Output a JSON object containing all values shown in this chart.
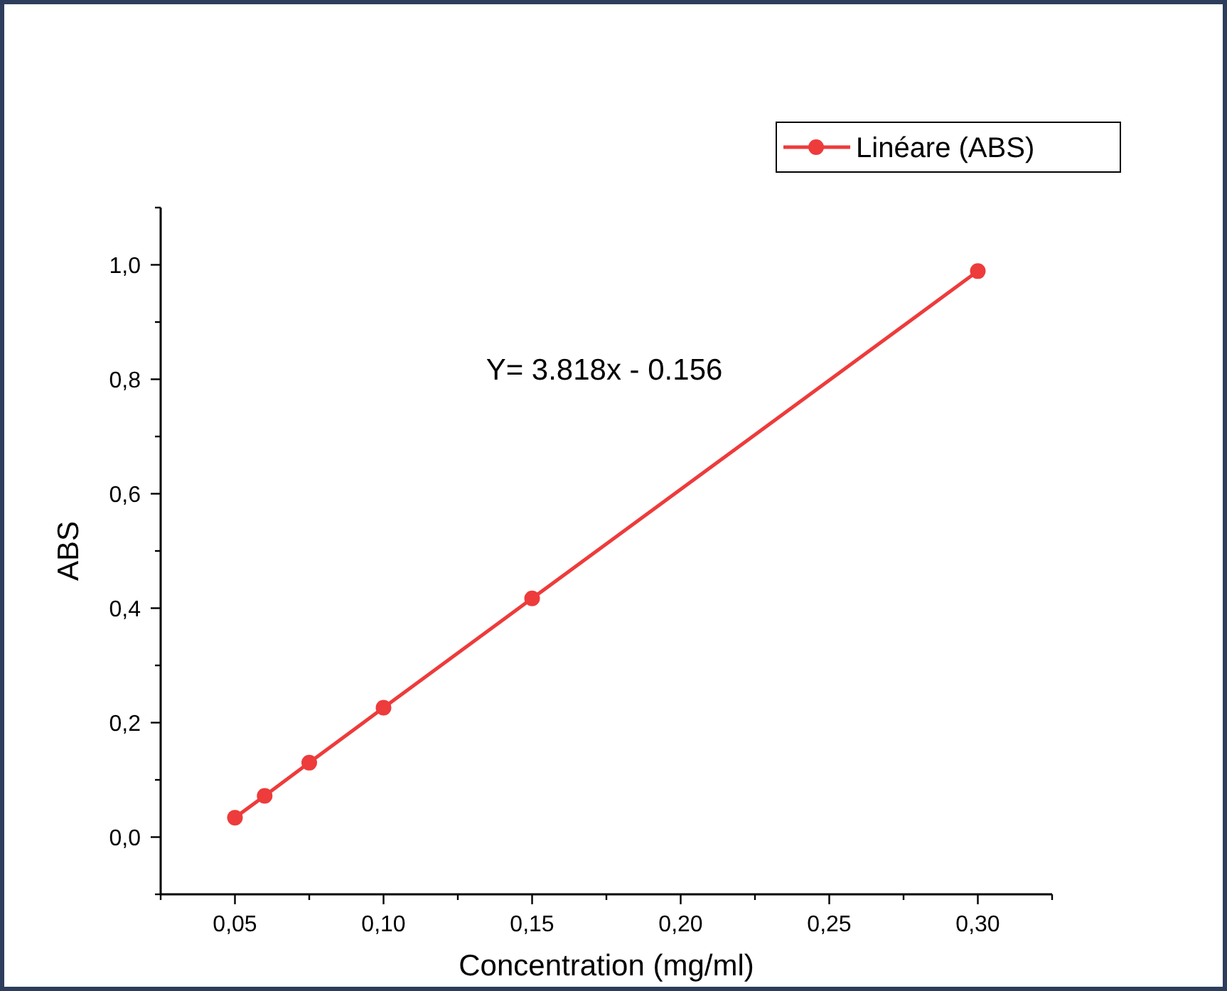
{
  "chart_data": {
    "type": "line",
    "xlabel": "Concentration (mg/ml)",
    "ylabel": "ABS",
    "x": [
      0.05,
      0.06,
      0.075,
      0.1,
      0.15,
      0.3
    ],
    "series": [
      {
        "name": "Linéare (ABS)",
        "color": "#ee3b3b",
        "values": [
          0.034,
          0.072,
          0.13,
          0.226,
          0.417,
          0.989
        ]
      }
    ],
    "xlim": [
      0.025,
      0.325
    ],
    "xticks": [
      {
        "value": 0.025,
        "label": null
      },
      {
        "value": 0.05,
        "label": "0,05"
      },
      {
        "value": 0.075,
        "label": null
      },
      {
        "value": 0.1,
        "label": "0,10"
      },
      {
        "value": 0.125,
        "label": null
      },
      {
        "value": 0.15,
        "label": "0,15"
      },
      {
        "value": 0.175,
        "label": null
      },
      {
        "value": 0.2,
        "label": "0,20"
      },
      {
        "value": 0.225,
        "label": null
      },
      {
        "value": 0.25,
        "label": "0,25"
      },
      {
        "value": 0.275,
        "label": null
      },
      {
        "value": 0.3,
        "label": "0,30"
      },
      {
        "value": 0.325,
        "label": null
      }
    ],
    "ylim": [
      -0.1,
      1.1
    ],
    "yticks": [
      {
        "value": -0.1,
        "label": null
      },
      {
        "value": 0,
        "label": "0,0"
      },
      {
        "value": 0.1,
        "label": null
      },
      {
        "value": 0.2,
        "label": "0,2"
      },
      {
        "value": 0.3,
        "label": null
      },
      {
        "value": 0.4,
        "label": "0,4"
      },
      {
        "value": 0.5,
        "label": null
      },
      {
        "value": 0.6,
        "label": "0,6"
      },
      {
        "value": 0.7,
        "label": null
      },
      {
        "value": 0.8,
        "label": "0,8"
      },
      {
        "value": 0.9,
        "label": null
      },
      {
        "value": 1,
        "label": "1,0"
      },
      {
        "value": 1.1,
        "label": null
      }
    ],
    "annotations": [
      "Y= 3.818x - 0.156"
    ],
    "marker": "circle",
    "line_style": "solid",
    "legend": "top right",
    "grid": false
  }
}
